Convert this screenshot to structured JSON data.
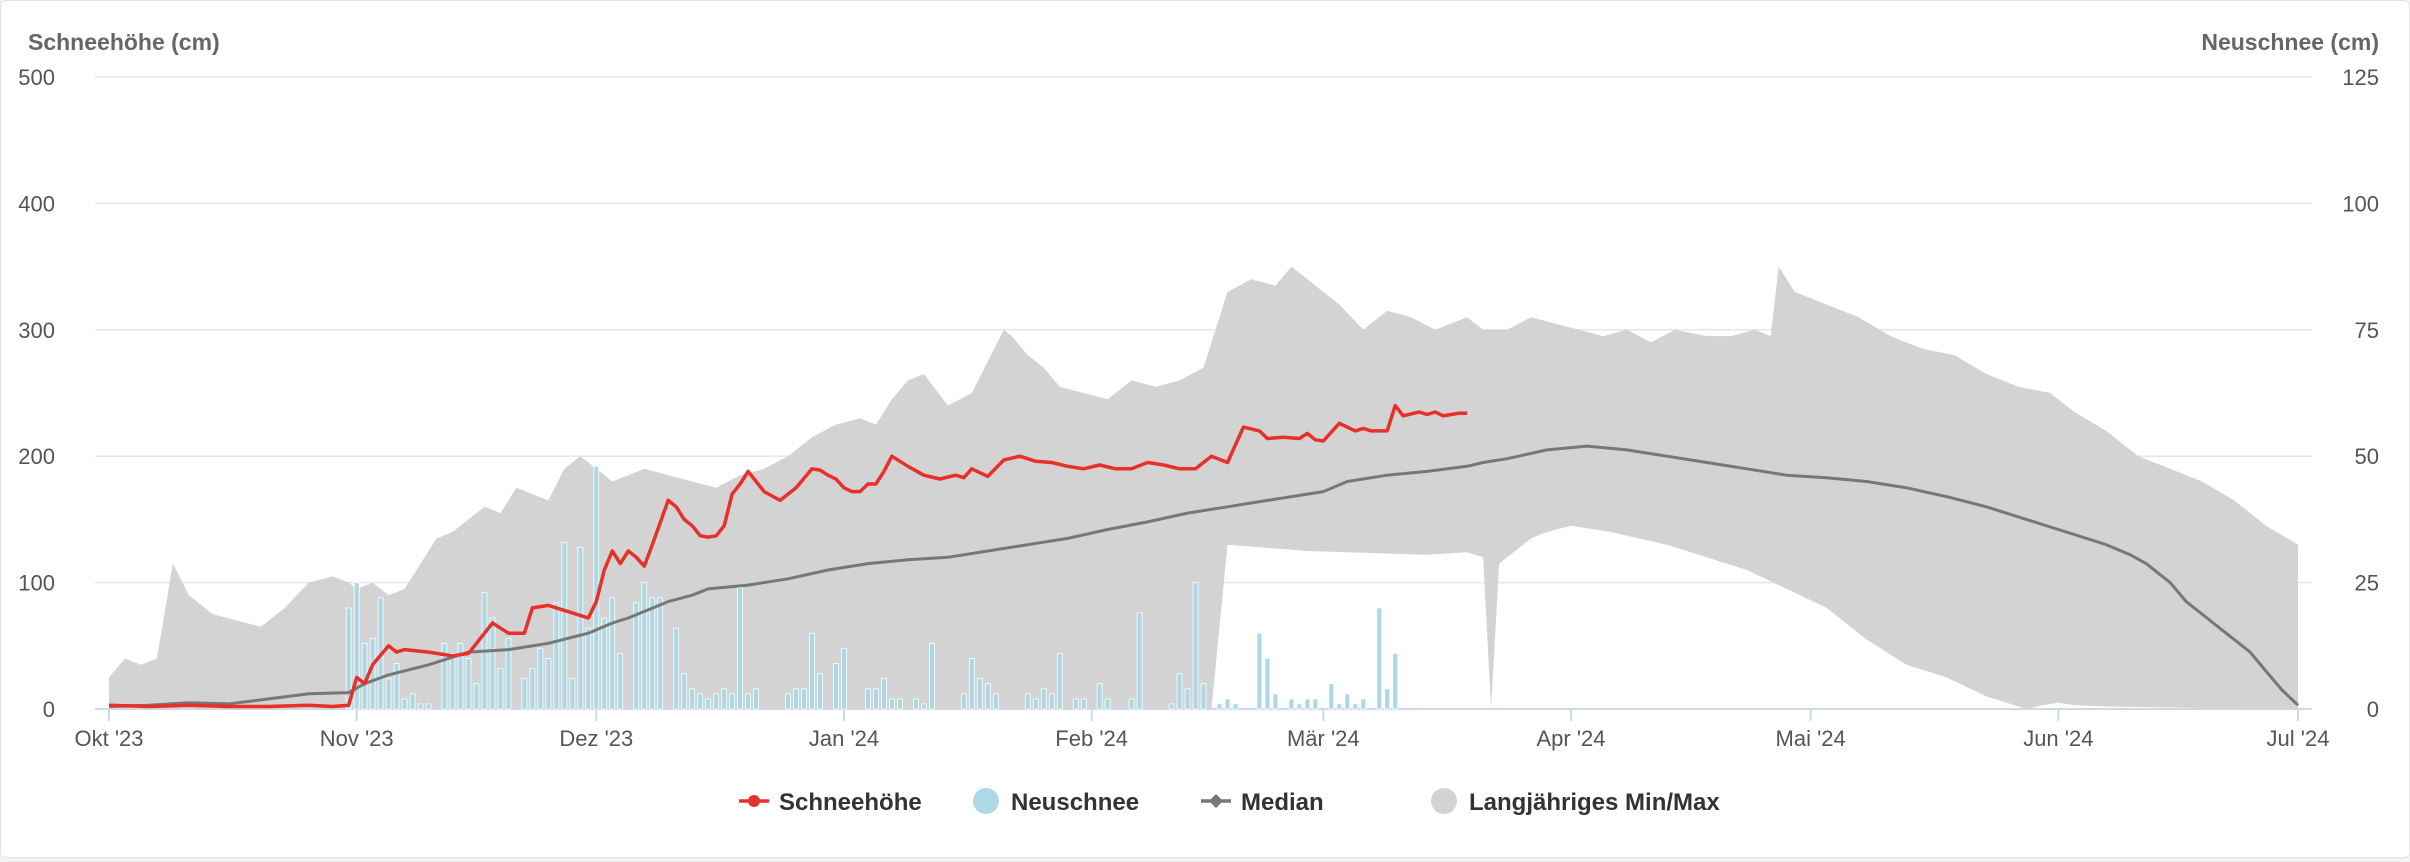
{
  "chart_data": {
    "type": "line",
    "ylabel_left": "Schneehöhe (cm)",
    "ylabel_right": "Neuschnee (cm)",
    "ylim_left": [
      0,
      500
    ],
    "ylim_right": [
      0,
      125
    ],
    "yticks_left": [
      "0",
      "100",
      "200",
      "300",
      "400",
      "500"
    ],
    "yticks_right": [
      "0",
      "25",
      "50",
      "75",
      "100",
      "125"
    ],
    "xlim_days": [
      0,
      274
    ],
    "x_ticks": [
      {
        "label": "Okt '23",
        "day": 0
      },
      {
        "label": "Nov '23",
        "day": 31
      },
      {
        "label": "Dez '23",
        "day": 61
      },
      {
        "label": "Jan '24",
        "day": 92
      },
      {
        "label": "Feb '24",
        "day": 123
      },
      {
        "label": "Mär '24",
        "day": 152
      },
      {
        "label": "Apr '24",
        "day": 183
      },
      {
        "label": "Mai '24",
        "day": 213
      },
      {
        "label": "Jun '24",
        "day": 244
      },
      {
        "label": "Jul '24",
        "day": 274
      }
    ],
    "grid": true,
    "legend_position": "bottom-center",
    "legend": [
      {
        "label": "Schneehöhe",
        "color": "#e8302a",
        "symbol": "line-circle"
      },
      {
        "label": "Neuschnee",
        "color": "#add8e6",
        "symbol": "circle"
      },
      {
        "label": "Median",
        "color": "#777777",
        "symbol": "line-diamond"
      },
      {
        "label": "Langjähriges Min/Max",
        "color": "#d3d3d3",
        "symbol": "circle"
      }
    ],
    "series": [
      {
        "name": "Schneehöhe",
        "axis": "left",
        "color": "#e8302a",
        "x": [
          0,
          5,
          10,
          15,
          20,
          25,
          28,
          30,
          31,
          32,
          33,
          35,
          36,
          37,
          40,
          43,
          45,
          47,
          48,
          50,
          52,
          53,
          55,
          57,
          58,
          60,
          61,
          62,
          63,
          64,
          65,
          66,
          67,
          68,
          70,
          71,
          72,
          73,
          74,
          75,
          76,
          77,
          78,
          79,
          80,
          82,
          84,
          86,
          88,
          89,
          90,
          91,
          92,
          93,
          94,
          95,
          96,
          97,
          98,
          100,
          102,
          104,
          106,
          107,
          108,
          110,
          112,
          114,
          116,
          118,
          120,
          122,
          124,
          126,
          128,
          130,
          132,
          134,
          136,
          138,
          140,
          142,
          144,
          145,
          147,
          149,
          150,
          151,
          152,
          154,
          156,
          157,
          158,
          160,
          161,
          162,
          164,
          165,
          166,
          167,
          168,
          169,
          170
        ],
        "y": [
          3,
          2,
          3,
          2,
          2,
          3,
          2,
          3,
          25,
          20,
          35,
          50,
          45,
          47,
          45,
          42,
          44,
          60,
          68,
          60,
          60,
          80,
          82,
          78,
          76,
          72,
          85,
          110,
          125,
          115,
          125,
          120,
          113,
          130,
          165,
          160,
          150,
          145,
          137,
          136,
          137,
          145,
          170,
          178,
          188,
          172,
          165,
          175,
          190,
          189,
          185,
          182,
          175,
          172,
          172,
          178,
          178,
          188,
          200,
          192,
          185,
          182,
          185,
          183,
          190,
          184,
          197,
          200,
          196,
          195,
          192,
          190,
          193,
          190,
          190,
          195,
          193,
          190,
          190,
          200,
          195,
          223,
          220,
          214,
          215,
          214,
          218,
          213,
          212,
          226,
          220,
          222,
          220,
          220,
          240,
          232,
          235,
          233,
          235,
          232,
          233,
          234,
          234
        ]
      },
      {
        "name": "Median",
        "axis": "left",
        "color": "#777777",
        "x": [
          0,
          5,
          10,
          15,
          20,
          25,
          30,
          32,
          35,
          40,
          45,
          50,
          55,
          60,
          63,
          65,
          70,
          73,
          75,
          80,
          85,
          90,
          95,
          100,
          105,
          110,
          115,
          120,
          125,
          130,
          135,
          140,
          145,
          150,
          152,
          155,
          160,
          165,
          170,
          172,
          175,
          180,
          185,
          190,
          195,
          200,
          205,
          210,
          215,
          220,
          225,
          230,
          235,
          240,
          245,
          250,
          253,
          255,
          258,
          260,
          263,
          265,
          268,
          270,
          272,
          274
        ],
        "y": [
          2,
          3,
          5,
          4,
          8,
          12,
          13,
          20,
          27,
          35,
          45,
          47,
          52,
          60,
          68,
          72,
          85,
          90,
          95,
          98,
          103,
          110,
          115,
          118,
          120,
          125,
          130,
          135,
          142,
          148,
          155,
          160,
          165,
          170,
          172,
          180,
          185,
          188,
          192,
          195,
          198,
          205,
          208,
          205,
          200,
          195,
          190,
          185,
          183,
          180,
          175,
          168,
          160,
          150,
          140,
          130,
          122,
          115,
          100,
          85,
          70,
          60,
          45,
          30,
          15,
          3
        ]
      },
      {
        "name": "Langjähriges Max",
        "axis": "left",
        "color": "#d3d3d3",
        "x": [
          0,
          2,
          4,
          6,
          8,
          10,
          13,
          16,
          19,
          22,
          25,
          28,
          30,
          31,
          33,
          35,
          37,
          39,
          41,
          43,
          45,
          47,
          49,
          51,
          53,
          55,
          57,
          59,
          61,
          63,
          65,
          67,
          70,
          73,
          76,
          79,
          82,
          85,
          88,
          91,
          94,
          96,
          98,
          100,
          102,
          105,
          108,
          110,
          112,
          113,
          115,
          117,
          119,
          122,
          125,
          128,
          131,
          134,
          137,
          140,
          143,
          146,
          148,
          150,
          152,
          154,
          157,
          160,
          163,
          166,
          168,
          170,
          172,
          175,
          178,
          181,
          184,
          187,
          190,
          193,
          196,
          200,
          203,
          206,
          208,
          209,
          211,
          215,
          219,
          223,
          227,
          231,
          235,
          239,
          243,
          246,
          250,
          254,
          258,
          262,
          266,
          270,
          274
        ],
        "y": [
          25,
          40,
          35,
          40,
          115,
          90,
          75,
          70,
          65,
          80,
          100,
          105,
          100,
          95,
          100,
          90,
          95,
          115,
          135,
          140,
          150,
          160,
          155,
          175,
          170,
          165,
          190,
          200,
          190,
          180,
          185,
          190,
          185,
          180,
          175,
          185,
          190,
          200,
          215,
          225,
          230,
          225,
          245,
          260,
          265,
          240,
          250,
          275,
          300,
          295,
          280,
          270,
          255,
          250,
          245,
          260,
          255,
          260,
          270,
          330,
          340,
          335,
          350,
          340,
          330,
          320,
          300,
          315,
          310,
          300,
          305,
          310,
          300,
          300,
          310,
          305,
          300,
          295,
          300,
          290,
          300,
          295,
          295,
          300,
          295,
          350,
          330,
          320,
          310,
          295,
          285,
          280,
          265,
          255,
          250,
          235,
          220,
          200,
          190,
          180,
          165,
          145,
          130
        ]
      },
      {
        "name": "Langjähriges Min",
        "axis": "left",
        "color": "#d3d3d3",
        "x": [
          0,
          60,
          63,
          64,
          66,
          70,
          90,
          100,
          120,
          130,
          135,
          138,
          140,
          150,
          160,
          165,
          170,
          172,
          173,
          174,
          176,
          178,
          180,
          183,
          188,
          195,
          200,
          205,
          210,
          215,
          220,
          225,
          230,
          235,
          240,
          242,
          244,
          246,
          250,
          260,
          270,
          274
        ],
        "y": [
          0,
          0,
          0,
          0,
          0,
          0,
          0,
          0,
          0,
          0,
          0,
          0,
          130,
          125,
          123,
          122,
          124,
          120,
          0,
          115,
          125,
          135,
          140,
          145,
          140,
          130,
          120,
          110,
          95,
          80,
          55,
          35,
          25,
          10,
          0,
          3,
          5,
          3,
          2,
          1,
          0,
          0
        ]
      }
    ],
    "bars": {
      "name": "Neuschnee",
      "axis": "right",
      "color": "#add8e6",
      "x": [
        29,
        30,
        31,
        32,
        33,
        34,
        35,
        36,
        37,
        38,
        39,
        40,
        41,
        42,
        43,
        44,
        45,
        46,
        47,
        48,
        49,
        50,
        51,
        52,
        53,
        54,
        55,
        56,
        57,
        58,
        59,
        60,
        61,
        62,
        63,
        64,
        65,
        66,
        67,
        68,
        69,
        71,
        72,
        73,
        74,
        75,
        76,
        77,
        78,
        79,
        80,
        81,
        85,
        86,
        87,
        88,
        89,
        91,
        92,
        95,
        96,
        97,
        98,
        99,
        101,
        102,
        103,
        107,
        108,
        109,
        110,
        111,
        115,
        116,
        117,
        118,
        119,
        121,
        122,
        124,
        125,
        128,
        129,
        133,
        134,
        135,
        136,
        137,
        139,
        140,
        141,
        144,
        145,
        146,
        148,
        149,
        150,
        151,
        153,
        154,
        155,
        156,
        157,
        159,
        160,
        161
      ],
      "y": [
        0,
        20,
        25,
        13,
        14,
        22,
        6,
        9,
        2,
        3,
        1,
        1,
        0,
        13,
        11,
        13,
        10,
        5,
        23,
        18,
        8,
        14,
        0,
        6,
        8,
        12,
        10,
        21,
        33,
        6,
        32,
        16,
        48,
        18,
        22,
        11,
        0,
        21,
        25,
        22,
        22,
        16,
        7,
        4,
        3,
        2,
        3,
        4,
        3,
        24,
        3,
        4,
        3,
        4,
        4,
        15,
        7,
        9,
        12,
        4,
        4,
        6,
        2,
        2,
        2,
        1,
        13,
        3,
        10,
        6,
        5,
        3,
        3,
        2,
        4,
        3,
        11,
        2,
        2,
        5,
        2,
        2,
        19,
        1,
        7,
        4,
        25,
        5,
        1,
        2,
        1,
        15,
        10,
        3,
        2,
        1,
        2,
        2,
        5,
        1,
        3,
        1,
        2,
        20,
        4,
        11
      ]
    }
  }
}
